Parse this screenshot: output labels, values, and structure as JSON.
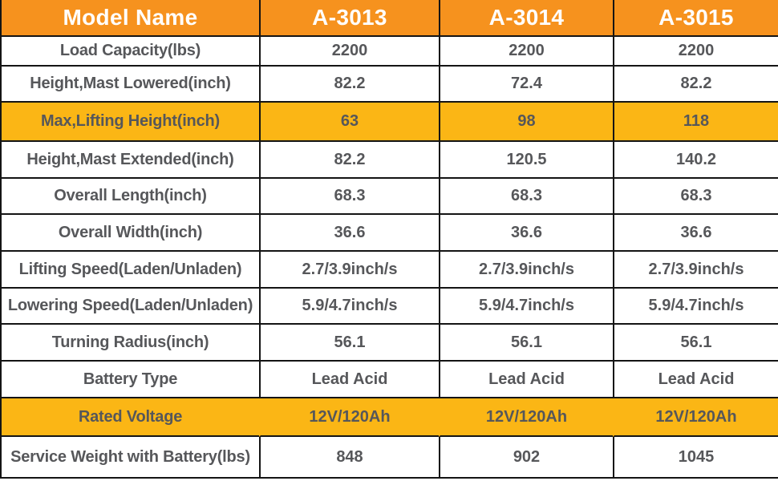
{
  "table": {
    "header": {
      "title": "Model Name",
      "model_columns": [
        "A-3013",
        "A-3014",
        "A-3015"
      ]
    },
    "rows": [
      {
        "label": "Load Capacity(lbs)",
        "values": [
          "2200",
          "2200",
          "2200"
        ],
        "highlight": false
      },
      {
        "label": "Height,Mast Lowered(inch)",
        "values": [
          "82.2",
          "72.4",
          "82.2"
        ],
        "highlight": false
      },
      {
        "label": "Max,Lifting Height(inch)",
        "values": [
          "63",
          "98",
          "118"
        ],
        "highlight": true
      },
      {
        "label": "Height,Mast Extended(inch)",
        "values": [
          "82.2",
          "120.5",
          "140.2"
        ],
        "highlight": false
      },
      {
        "label": "Overall Length(inch)",
        "values": [
          "68.3",
          "68.3",
          "68.3"
        ],
        "highlight": false
      },
      {
        "label": "Overall Width(inch)",
        "values": [
          "36.6",
          "36.6",
          "36.6"
        ],
        "highlight": false
      },
      {
        "label": "Lifting Speed(Laden/Unladen)",
        "values": [
          "2.7/3.9inch/s",
          "2.7/3.9inch/s",
          "2.7/3.9inch/s"
        ],
        "highlight": false
      },
      {
        "label": "Lowering Speed(Laden/Unladen)",
        "values": [
          "5.9/4.7inch/s",
          "5.9/4.7inch/s",
          "5.9/4.7inch/s"
        ],
        "highlight": false
      },
      {
        "label": "Turning Radius(inch)",
        "values": [
          "56.1",
          "56.1",
          "56.1"
        ],
        "highlight": false
      },
      {
        "label": "Battery Type",
        "values": [
          "Lead Acid",
          "Lead Acid",
          "Lead Acid"
        ],
        "highlight": false
      },
      {
        "label": "Rated Voltage",
        "values": [
          "12V/120Ah",
          "12V/120Ah",
          "12V/120Ah"
        ],
        "highlight": true
      },
      {
        "label": "Service Weight with Battery(lbs)",
        "values": [
          "848",
          "902",
          "1045"
        ],
        "highlight": false
      }
    ],
    "colors": {
      "header_bg": "#F6921E",
      "header_text": "#FFFFFF",
      "highlight_bg": "#FBB615",
      "body_text": "#56575A",
      "grid_line": "#141414",
      "page_bg": "#FFFFFF"
    }
  }
}
